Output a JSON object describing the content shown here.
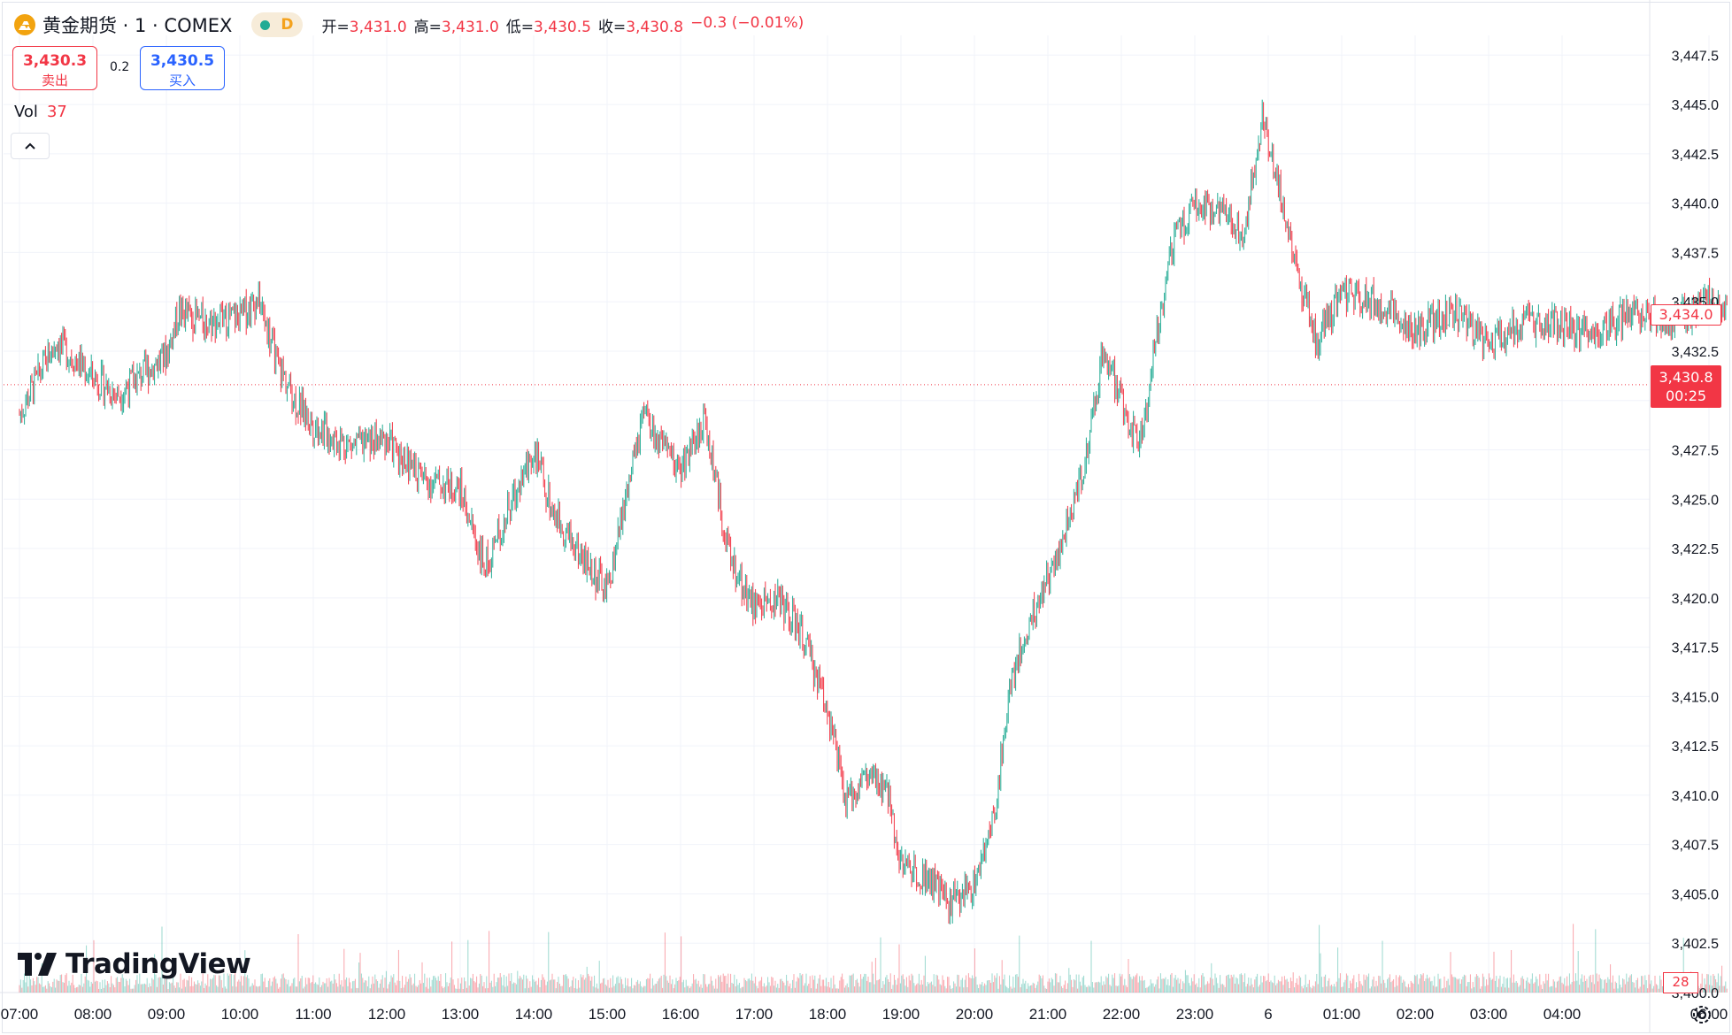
{
  "header": {
    "symbol": "黄金期货 · 1 · COMEX",
    "interval_chip": "D",
    "ohlc": [
      {
        "key": "开=",
        "value": "3,431.0"
      },
      {
        "key": "高=",
        "value": "3,431.0"
      },
      {
        "key": "低=",
        "value": "3,430.5"
      },
      {
        "key": "收=",
        "value": "3,430.8"
      }
    ],
    "change": "−0.3 (−0.01%)"
  },
  "trade": {
    "sell_price": "3,430.3",
    "sell_label": "卖出",
    "spread": "0.2",
    "buy_price": "3,430.5",
    "buy_label": "买入"
  },
  "volume": {
    "label": "Vol",
    "value": "37"
  },
  "watermark": "TradingView",
  "price_tags": {
    "last_high": "3,434.0",
    "current": "3,430.8",
    "countdown": "00:25",
    "volume": "28"
  },
  "colors": {
    "up": "#22ab94",
    "down": "#f23645",
    "accent": "#2962ff",
    "grid": "#f0f3fa"
  },
  "chart_data": {
    "type": "candlestick",
    "interval": "1 minute",
    "y_axis_ticks": [
      "3,447.5",
      "3,445.0",
      "3,442.5",
      "3,440.0",
      "3,437.5",
      "3,435.0",
      "3,432.5",
      "3,430.0",
      "3,427.5",
      "3,425.0",
      "3,422.5",
      "3,420.0",
      "3,417.5",
      "3,415.0",
      "3,412.5",
      "3,410.0",
      "3,407.5",
      "3,405.0",
      "3,402.5",
      "3,400.0"
    ],
    "x_axis_ticks": [
      "07:00",
      "08:00",
      "09:00",
      "10:00",
      "11:00",
      "12:00",
      "13:00",
      "14:00",
      "15:00",
      "16:00",
      "17:00",
      "18:00",
      "19:00",
      "20:00",
      "21:00",
      "22:00",
      "23:00",
      "6",
      "01:00",
      "02:00",
      "03:00",
      "04:00",
      "06:00"
    ],
    "ylim": [
      3400.0,
      3448.5
    ],
    "price_path": [
      {
        "t": "07:00",
        "price": 3429.3
      },
      {
        "t": "07:30",
        "price": 3433.0
      },
      {
        "t": "08:00",
        "price": 3431.2
      },
      {
        "t": "08:20",
        "price": 3430.3
      },
      {
        "t": "09:00",
        "price": 3432.3
      },
      {
        "t": "09:10",
        "price": 3434.5
      },
      {
        "t": "09:30",
        "price": 3434.0
      },
      {
        "t": "10:00",
        "price": 3434.2
      },
      {
        "t": "10:15",
        "price": 3435.2
      },
      {
        "t": "10:30",
        "price": 3432.0
      },
      {
        "t": "10:45",
        "price": 3430.0
      },
      {
        "t": "11:00",
        "price": 3428.8
      },
      {
        "t": "11:30",
        "price": 3427.7
      },
      {
        "t": "12:00",
        "price": 3428.0
      },
      {
        "t": "12:30",
        "price": 3426.0
      },
      {
        "t": "13:00",
        "price": 3425.5
      },
      {
        "t": "13:20",
        "price": 3421.5
      },
      {
        "t": "13:40",
        "price": 3424.5
      },
      {
        "t": "14:00",
        "price": 3427.5
      },
      {
        "t": "14:15",
        "price": 3424.5
      },
      {
        "t": "14:40",
        "price": 3422.0
      },
      {
        "t": "15:00",
        "price": 3420.3
      },
      {
        "t": "15:15",
        "price": 3425.0
      },
      {
        "t": "15:30",
        "price": 3429.2
      },
      {
        "t": "15:45",
        "price": 3427.5
      },
      {
        "t": "16:00",
        "price": 3426.5
      },
      {
        "t": "16:20",
        "price": 3429.0
      },
      {
        "t": "16:40",
        "price": 3422.0
      },
      {
        "t": "17:00",
        "price": 3419.5
      },
      {
        "t": "17:20",
        "price": 3420.0
      },
      {
        "t": "17:40",
        "price": 3418.0
      },
      {
        "t": "18:00",
        "price": 3414.5
      },
      {
        "t": "18:15",
        "price": 3409.5
      },
      {
        "t": "18:30",
        "price": 3411.0
      },
      {
        "t": "18:50",
        "price": 3410.0
      },
      {
        "t": "19:00",
        "price": 3406.5
      },
      {
        "t": "19:20",
        "price": 3406.0
      },
      {
        "t": "19:40",
        "price": 3404.5
      },
      {
        "t": "20:00",
        "price": 3405.5
      },
      {
        "t": "20:15",
        "price": 3408.5
      },
      {
        "t": "20:30",
        "price": 3416.0
      },
      {
        "t": "20:50",
        "price": 3419.5
      },
      {
        "t": "21:10",
        "price": 3422.5
      },
      {
        "t": "21:30",
        "price": 3426.5
      },
      {
        "t": "21:45",
        "price": 3432.5
      },
      {
        "t": "22:00",
        "price": 3430.0
      },
      {
        "t": "22:15",
        "price": 3427.5
      },
      {
        "t": "22:30",
        "price": 3434.0
      },
      {
        "t": "22:45",
        "price": 3438.5
      },
      {
        "t": "23:00",
        "price": 3440.0
      },
      {
        "t": "23:20",
        "price": 3439.5
      },
      {
        "t": "23:40",
        "price": 3438.5
      },
      {
        "t": "23:55",
        "price": 3444.5
      },
      {
        "t": "00:10",
        "price": 3440.5
      },
      {
        "t": "00:25",
        "price": 3436.0
      },
      {
        "t": "00:40",
        "price": 3433.0
      },
      {
        "t": "01:00",
        "price": 3435.5
      },
      {
        "t": "01:30",
        "price": 3435.0
      },
      {
        "t": "02:00",
        "price": 3433.5
      },
      {
        "t": "02:30",
        "price": 3434.5
      },
      {
        "t": "03:00",
        "price": 3433.0
      },
      {
        "t": "03:30",
        "price": 3434.0
      },
      {
        "t": "04:00",
        "price": 3433.8
      },
      {
        "t": "04:30",
        "price": 3433.5
      },
      {
        "t": "05:00",
        "price": 3434.5
      },
      {
        "t": "05:30",
        "price": 3434.0
      },
      {
        "t": "06:00",
        "price": 3435.0
      },
      {
        "t": "06:15",
        "price": 3434.5
      }
    ],
    "last_price": 3430.8,
    "high_marker": 3434.0
  }
}
